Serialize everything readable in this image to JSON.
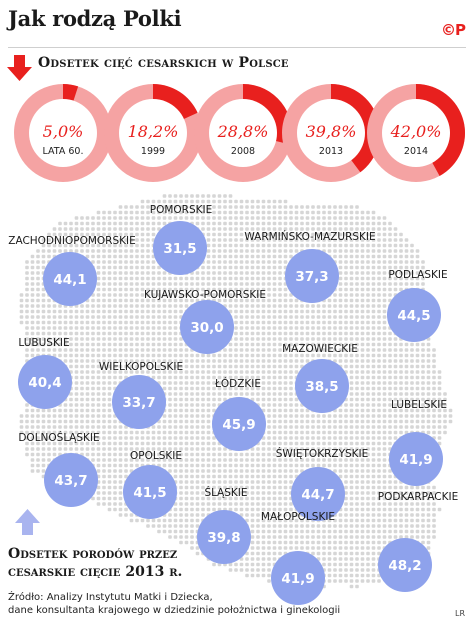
{
  "header": {
    "title": "Jak rodzą Polki",
    "logo": "©P",
    "subtitle": "Odsetek cięć cesarskich w Polsce"
  },
  "colors": {
    "accent": "#e8201e",
    "ring": "#f5a3a3",
    "bubble": "#8ea2ec",
    "map": "#d6d6d6",
    "legend_arrow": "#a9b4ef"
  },
  "chart_data": [
    {
      "type": "pie",
      "title": "Odsetek cięć cesarskich w Polsce",
      "categories": [
        "lata 60.",
        "1999",
        "2008",
        "2013",
        "2014"
      ],
      "values": [
        5.0,
        18.2,
        28.8,
        39.8,
        42.0
      ],
      "labels": [
        "5,0%",
        "18,2%",
        "28,8%",
        "39,8%",
        "42,0%"
      ]
    },
    {
      "type": "scatter",
      "title": "Odsetek porodów przez cesarskie cięcie 2013 r.",
      "regions": [
        {
          "name": "POMORSKIE",
          "value": "31,5"
        },
        {
          "name": "ZACHODNIOPOMORSKIE",
          "value": "44,1"
        },
        {
          "name": "WARMIŃSKO-MAZURSKIE",
          "value": "37,3"
        },
        {
          "name": "PODLASKIE",
          "value": "44,5"
        },
        {
          "name": "KUJAWSKO-POMORSKIE",
          "value": "30,0"
        },
        {
          "name": "LUBUSKIE",
          "value": "40,4"
        },
        {
          "name": "MAZOWIECKIE",
          "value": "38,5"
        },
        {
          "name": "WIELKOPOLSKIE",
          "value": "33,7"
        },
        {
          "name": "ŁÓDZKIE",
          "value": "45,9"
        },
        {
          "name": "LUBELSKIE",
          "value": "41,9"
        },
        {
          "name": "DOLNOŚLĄSKIE",
          "value": "43,7"
        },
        {
          "name": "OPOLSKIE",
          "value": "41,5"
        },
        {
          "name": "ŚWIĘTOKRZYSKIE",
          "value": "44,7"
        },
        {
          "name": "ŚLĄSKIE",
          "value": "39,8"
        },
        {
          "name": "PODKARPACKIE",
          "value": "48,2"
        },
        {
          "name": "MAŁOPOLSKIE",
          "value": "41,9"
        }
      ]
    }
  ],
  "legend": {
    "line1": "Odsetek porodów przez",
    "line2": "cesarskie cięcie 2013 r."
  },
  "source": {
    "line1": "Źródło: Analizy Instytutu Matki i Dziecka,",
    "line2": "dane konsultanta krajowego w dziedzinie położnictwa i ginekologii"
  },
  "credit": "LR"
}
